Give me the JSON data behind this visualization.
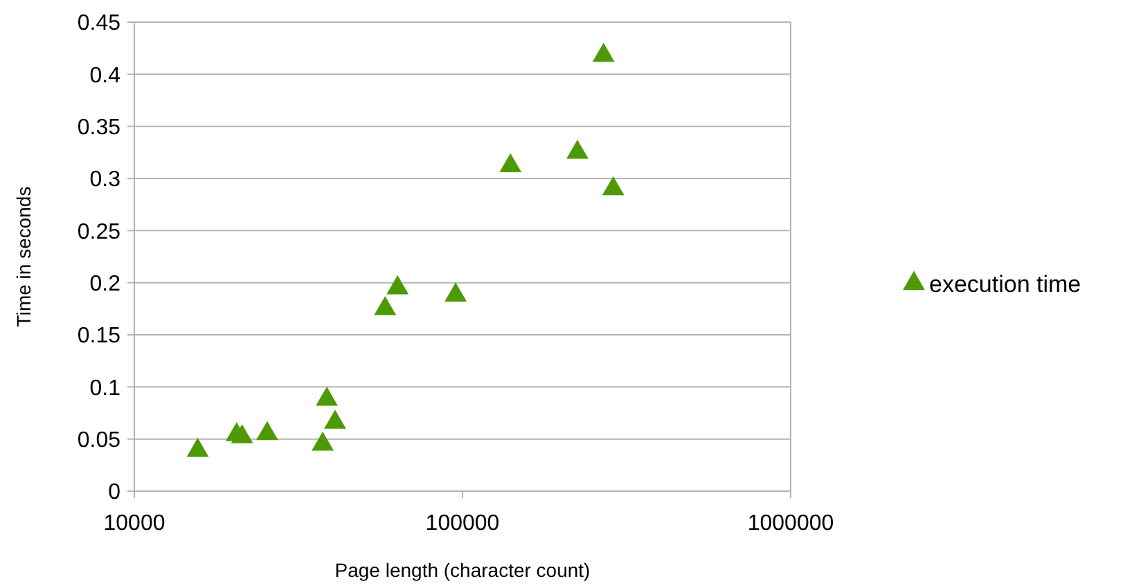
{
  "chart_data": {
    "type": "scatter",
    "xlabel": "Page length (character count)",
    "ylabel": "Time in seconds",
    "log": "x",
    "xlim": [
      10000,
      1000000
    ],
    "xticks": [
      10000,
      100000,
      1000000
    ],
    "ylim": [
      0,
      0.45
    ],
    "yticks": [
      0,
      0.05,
      0.1,
      0.15,
      0.2,
      0.25,
      0.3,
      0.35,
      0.4,
      0.45
    ],
    "grid": "y",
    "legend": "right",
    "marker": "triangle",
    "series": [
      {
        "name": "execution time",
        "color": "#4e9a06",
        "x": [
          15600,
          20500,
          21300,
          25400,
          37500,
          38600,
          40900,
          58100,
          63400,
          95300,
          140000,
          224000,
          269000,
          288000
        ],
        "values": [
          0.039,
          0.054,
          0.052,
          0.055,
          0.045,
          0.088,
          0.066,
          0.175,
          0.195,
          0.188,
          0.312,
          0.325,
          0.418,
          0.29
        ]
      }
    ]
  }
}
